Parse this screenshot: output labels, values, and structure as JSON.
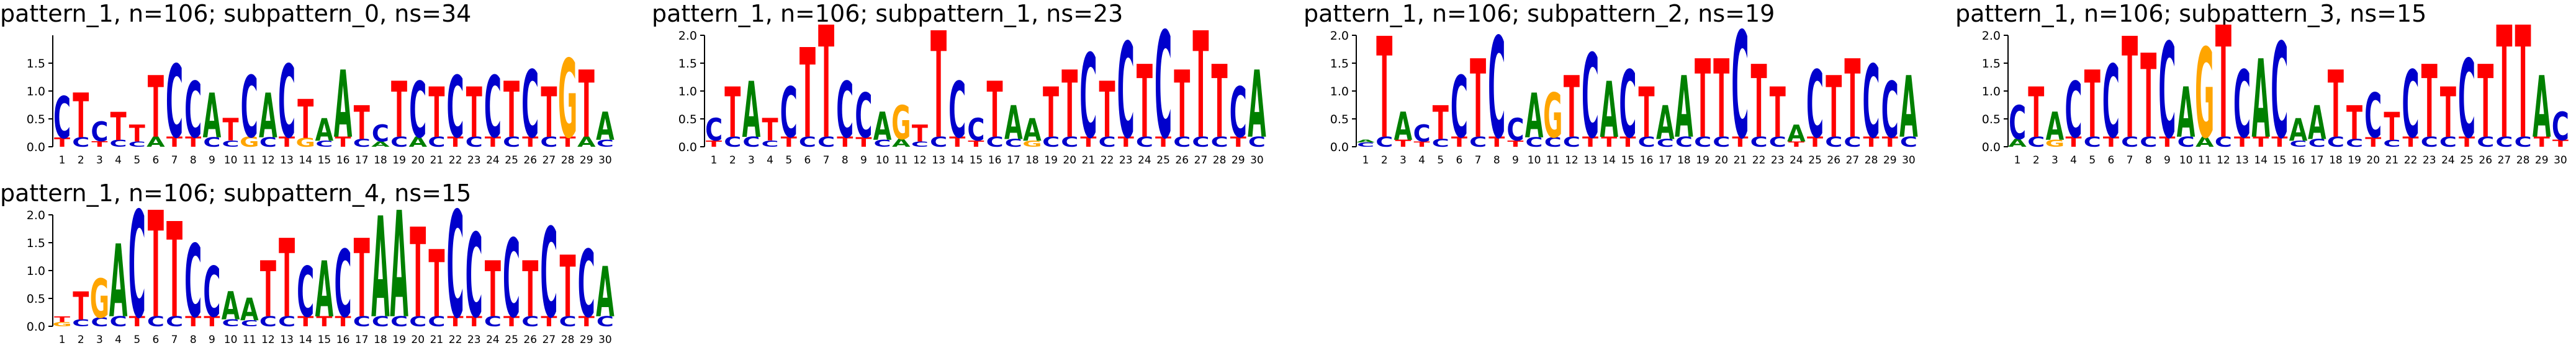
{
  "chart_data": [
    {
      "type": "sequence-logo",
      "title": "pattern_1, n=106; subpattern_0, ns=34",
      "yticks": [
        "0.0",
        "0.5",
        "1.0",
        "1.5"
      ],
      "ylim": [
        0,
        2.0
      ],
      "positions": [
        "1",
        "2",
        "3",
        "4",
        "5",
        "6",
        "7",
        "8",
        "9",
        "10",
        "11",
        "12",
        "13",
        "14",
        "15",
        "16",
        "17",
        "18",
        "19",
        "20",
        "21",
        "22",
        "23",
        "24",
        "25",
        "26",
        "27",
        "28",
        "29",
        "30"
      ],
      "consensus": [
        "C",
        "T",
        "C",
        "T",
        "T",
        "T",
        "C",
        "C",
        "A",
        "T",
        "C",
        "A",
        "C",
        "T",
        "A",
        "A",
        "T",
        "C",
        "T",
        "C",
        "T",
        "C",
        "T",
        "C",
        "T",
        "C",
        "T",
        "G",
        "T",
        "A"
      ],
      "heights": [
        0.75,
        0.8,
        0.35,
        0.5,
        0.3,
        1.1,
        1.3,
        1.0,
        0.8,
        0.4,
        1.1,
        0.8,
        1.3,
        0.7,
        0.4,
        1.2,
        0.6,
        0.3,
        1.0,
        1.0,
        0.9,
        1.1,
        0.9,
        1.1,
        1.0,
        1.2,
        0.9,
        1.4,
        1.2,
        0.5
      ],
      "secondary": [
        "T",
        "C",
        "T",
        "C",
        "C",
        "A",
        "T",
        "T",
        "C",
        "C",
        "G",
        "C",
        "T",
        "G",
        "C",
        "T",
        "C",
        "A",
        "C",
        "A",
        "C",
        "T",
        "C",
        "T",
        "C",
        "T",
        "C",
        "T",
        "A",
        "C"
      ]
    },
    {
      "type": "sequence-logo",
      "title": "pattern_1, n=106; subpattern_1, ns=23",
      "yticks": [
        "0.0",
        "0.5",
        "1.0",
        "1.5",
        "2.0"
      ],
      "ylim": [
        0,
        2.0
      ],
      "positions": [
        "1",
        "2",
        "3",
        "4",
        "5",
        "6",
        "7",
        "8",
        "9",
        "10",
        "11",
        "12",
        "13",
        "14",
        "15",
        "16",
        "17",
        "18",
        "19",
        "20",
        "21",
        "22",
        "23",
        "24",
        "25",
        "26",
        "27",
        "28",
        "29",
        "30"
      ],
      "consensus": [
        "C",
        "T",
        "A",
        "T",
        "C",
        "T",
        "T",
        "C",
        "C",
        "A",
        "G",
        "T",
        "T",
        "C",
        "C",
        "T",
        "A",
        "A",
        "T",
        "T",
        "C",
        "T",
        "C",
        "T",
        "C",
        "T",
        "T",
        "T",
        "C",
        "A"
      ],
      "heights": [
        0.4,
        0.9,
        1.0,
        0.4,
        0.9,
        1.6,
        2.0,
        1.0,
        0.8,
        0.5,
        0.6,
        0.3,
        1.9,
        1.0,
        0.4,
        1.0,
        0.6,
        0.4,
        0.9,
        1.2,
        1.5,
        1.0,
        1.7,
        1.3,
        1.9,
        1.2,
        1.9,
        1.3,
        0.9,
        1.2
      ],
      "secondary": [
        "T",
        "C",
        "C",
        "C",
        "T",
        "C",
        "C",
        "T",
        "T",
        "C",
        "A",
        "C",
        "C",
        "T",
        "T",
        "C",
        "C",
        "G",
        "C",
        "C",
        "T",
        "C",
        "T",
        "C",
        "T",
        "C",
        "C",
        "C",
        "T",
        "C"
      ]
    },
    {
      "type": "sequence-logo",
      "title": "pattern_1, n=106; subpattern_2, ns=19",
      "yticks": [
        "0.0",
        "0.5",
        "1.0",
        "1.5",
        "2.0"
      ],
      "ylim": [
        0,
        2.0
      ],
      "positions": [
        "1",
        "2",
        "3",
        "4",
        "5",
        "6",
        "7",
        "8",
        "9",
        "10",
        "11",
        "12",
        "13",
        "14",
        "15",
        "16",
        "17",
        "18",
        "19",
        "20",
        "21",
        "22",
        "23",
        "24",
        "25",
        "26",
        "27",
        "28",
        "29",
        "30"
      ],
      "consensus": [
        "A",
        "T",
        "A",
        "C",
        "T",
        "C",
        "T",
        "C",
        "C",
        "A",
        "G",
        "T",
        "C",
        "A",
        "C",
        "T",
        "A",
        "A",
        "T",
        "T",
        "C",
        "T",
        "T",
        "A",
        "C",
        "T",
        "T",
        "C",
        "C",
        "A"
      ],
      "heights": [
        0.05,
        1.8,
        0.5,
        0.3,
        0.6,
        1.1,
        1.4,
        1.8,
        0.4,
        0.8,
        0.8,
        1.1,
        1.5,
        1.0,
        1.2,
        0.9,
        0.6,
        1.1,
        1.4,
        1.4,
        1.9,
        1.3,
        0.9,
        0.3,
        1.2,
        1.1,
        1.4,
        1.3,
        1.0,
        1.1
      ],
      "secondary": [
        "C",
        "C",
        "T",
        "T",
        "C",
        "T",
        "C",
        "T",
        "T",
        "C",
        "C",
        "C",
        "T",
        "T",
        "T",
        "C",
        "C",
        "C",
        "C",
        "C",
        "T",
        "C",
        "C",
        "T",
        "T",
        "C",
        "C",
        "T",
        "T",
        "C"
      ]
    },
    {
      "type": "sequence-logo",
      "title": "pattern_1, n=106; subpattern_3, ns=15",
      "yticks": [
        "0.0",
        "0.5",
        "1.0",
        "1.5",
        "2.0"
      ],
      "ylim": [
        0,
        2.0
      ],
      "positions": [
        "1",
        "2",
        "3",
        "4",
        "5",
        "6",
        "7",
        "8",
        "9",
        "10",
        "11",
        "12",
        "13",
        "14",
        "15",
        "16",
        "17",
        "18",
        "19",
        "20",
        "21",
        "22",
        "23",
        "24",
        "25",
        "26",
        "27",
        "28",
        "29",
        "30"
      ],
      "consensus": [
        "C",
        "T",
        "A",
        "C",
        "T",
        "C",
        "T",
        "T",
        "C",
        "A",
        "G",
        "T",
        "C",
        "A",
        "C",
        "A",
        "A",
        "T",
        "T",
        "C",
        "T",
        "C",
        "T",
        "T",
        "C",
        "T",
        "T",
        "T",
        "A",
        "C"
      ],
      "heights": [
        0.6,
        0.9,
        0.5,
        1.0,
        1.2,
        1.3,
        1.8,
        1.5,
        1.7,
        0.9,
        1.6,
        2.0,
        1.2,
        1.4,
        1.7,
        0.4,
        0.6,
        1.2,
        0.6,
        0.8,
        0.5,
        1.2,
        1.3,
        0.9,
        1.4,
        1.3,
        2.0,
        2.0,
        1.1,
        0.5
      ],
      "secondary": [
        "A",
        "C",
        "G",
        "T",
        "C",
        "T",
        "C",
        "C",
        "T",
        "C",
        "A",
        "C",
        "T",
        "T",
        "T",
        "C",
        "C",
        "C",
        "C",
        "T",
        "C",
        "T",
        "C",
        "C",
        "T",
        "C",
        "C",
        "C",
        "T",
        "T"
      ]
    },
    {
      "type": "sequence-logo",
      "title": "pattern_1, n=106; subpattern_4, ns=15",
      "yticks": [
        "0.0",
        "0.5",
        "1.0",
        "1.5",
        "2.0"
      ],
      "ylim": [
        0,
        2.0
      ],
      "positions": [
        "1",
        "2",
        "3",
        "4",
        "5",
        "6",
        "7",
        "8",
        "9",
        "10",
        "11",
        "12",
        "13",
        "14",
        "15",
        "16",
        "17",
        "18",
        "19",
        "20",
        "21",
        "22",
        "23",
        "24",
        "25",
        "26",
        "27",
        "28",
        "29",
        "30"
      ],
      "consensus": [
        "T",
        "T",
        "G",
        "A",
        "C",
        "T",
        "T",
        "C",
        "C",
        "A",
        "A",
        "T",
        "T",
        "C",
        "A",
        "C",
        "T",
        "A",
        "A",
        "T",
        "T",
        "C",
        "C",
        "T",
        "C",
        "T",
        "C",
        "T",
        "C",
        "A"
      ],
      "heights": [
        0.1,
        0.5,
        0.7,
        1.3,
        1.9,
        1.9,
        1.7,
        1.3,
        0.9,
        0.5,
        0.4,
        1.0,
        1.4,
        0.9,
        1.0,
        1.2,
        1.4,
        1.8,
        1.9,
        1.6,
        1.2,
        1.9,
        1.5,
        1.0,
        1.4,
        1.0,
        1.6,
        1.1,
        1.2,
        0.9
      ],
      "secondary": [
        "G",
        "C",
        "C",
        "C",
        "T",
        "C",
        "C",
        "T",
        "T",
        "C",
        "C",
        "C",
        "C",
        "T",
        "T",
        "T",
        "C",
        "C",
        "C",
        "C",
        "C",
        "T",
        "T",
        "C",
        "T",
        "C",
        "T",
        "C",
        "T",
        "C"
      ]
    }
  ],
  "colors": {
    "A": "#008000",
    "C": "#0000cc",
    "G": "#ffa500",
    "T": "#ff0000"
  }
}
